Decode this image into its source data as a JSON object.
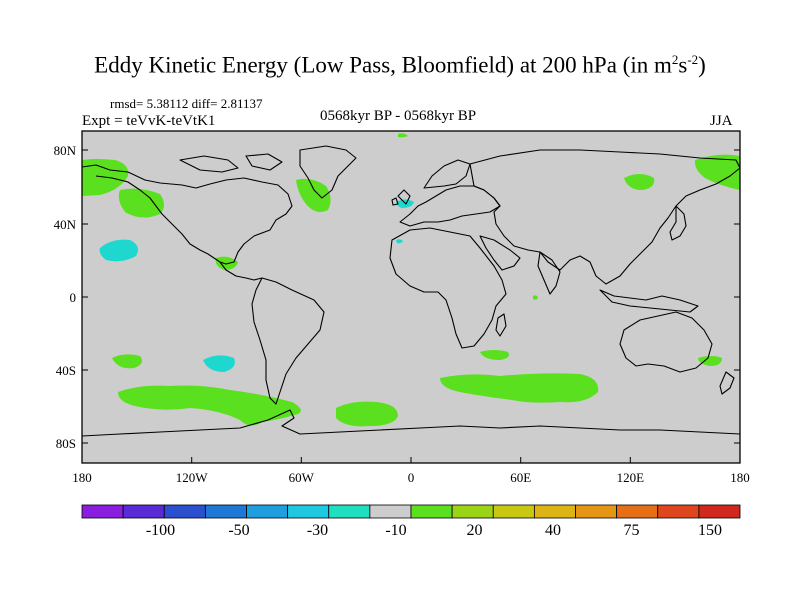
{
  "title": {
    "main": "Eddy Kinetic Energy (Low Pass, Bloomfield) at 200 hPa (in m",
    "sup1": "2",
    "mid": "s",
    "sup2": "-2",
    "close": ")"
  },
  "stats": "rmsd= 5.38112 diff= 2.81137",
  "expt": "Expt = teVvK-teVtK1",
  "period": "0568kyr BP - 0568kyr BP",
  "season": "JJA",
  "axes": {
    "lon_ticks": [
      "180",
      "120W",
      "60W",
      "0",
      "60E",
      "120E",
      "180"
    ],
    "lat_ticks": [
      "80N",
      "40N",
      "0",
      "40S",
      "80S"
    ]
  },
  "colorbar": {
    "colors": [
      "#8a1ee0",
      "#5a2ad6",
      "#2a50d0",
      "#1e78d8",
      "#1ea0e0",
      "#1ec8e0",
      "#1ee0c0",
      "#cdcdcd",
      "#5ae01e",
      "#9ad414",
      "#c8c814",
      "#dcb414",
      "#e69614",
      "#e66e14",
      "#e0461e",
      "#d0281e"
    ],
    "labels": [
      "-100",
      "-50",
      "-30",
      "-10",
      "20",
      "40",
      "75",
      "150"
    ]
  },
  "palette": {
    "land_sea": "#cdcdcd",
    "positive": "#5ae01e",
    "negative": "#1ed8d0"
  }
}
